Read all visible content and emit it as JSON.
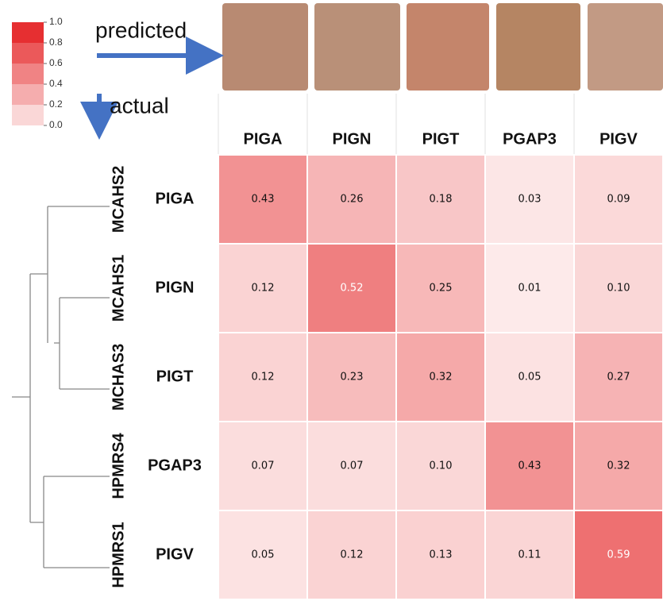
{
  "chart_data": {
    "type": "heatmap",
    "x_label": "predicted",
    "y_label": "actual",
    "x_categories": [
      "PIGA",
      "PIGN",
      "PIGT",
      "PGAP3",
      "PIGV"
    ],
    "y_categories": [
      "PIGA",
      "PIGN",
      "PIGT",
      "PGAP3",
      "PIGV"
    ],
    "y_groups": [
      "MCAHS2",
      "MCAHS1",
      "MCHAS3",
      "HPMRS4",
      "HPMRS1"
    ],
    "values": [
      [
        0.43,
        0.26,
        0.18,
        0.03,
        0.09
      ],
      [
        0.12,
        0.52,
        0.25,
        0.01,
        0.1
      ],
      [
        0.12,
        0.23,
        0.32,
        0.05,
        0.27
      ],
      [
        0.07,
        0.07,
        0.1,
        0.43,
        0.32
      ],
      [
        0.05,
        0.12,
        0.13,
        0.11,
        0.59
      ]
    ],
    "value_labels": [
      [
        "0.43",
        "0.26",
        "0.18",
        "0.03",
        "0.09"
      ],
      [
        "0.12",
        "0.52",
        "0.25",
        "0.01",
        "0.10"
      ],
      [
        "0.12",
        "0.23",
        "0.32",
        "0.05",
        "0.27"
      ],
      [
        "0.07",
        "0.07",
        "0.10",
        "0.43",
        "0.32"
      ],
      [
        "0.05",
        "0.12",
        "0.13",
        "0.11",
        "0.59"
      ]
    ],
    "colorbar_lim": [
      {
        "value": 0,
        "label": "0.0"
      },
      {
        "value": 1,
        "label": "1.0"
      }
    ],
    "colorbar_ticks": [
      {
        "value": 1,
        "label": "1.0"
      },
      0.8,
      0.6,
      0.4,
      0.2,
      {
        "value": 0,
        "label": "0.0"
      }
    ],
    "color_low": "#fdecec",
    "color_high": "#e31a1c"
  }
}
